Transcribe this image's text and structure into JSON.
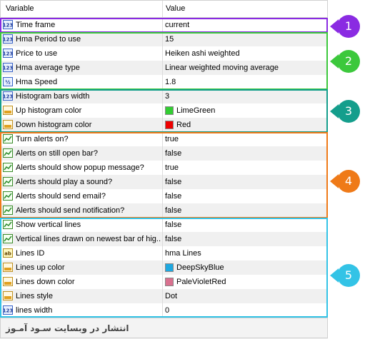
{
  "header": {
    "variable": "Variable",
    "value": "Value"
  },
  "rows": [
    {
      "name": "Time frame",
      "value": "current",
      "icon": "123"
    },
    {
      "name": "Hma Period to use",
      "value": "15",
      "icon": "123"
    },
    {
      "name": "Price to use",
      "value": "Heiken ashi weighted",
      "icon": "123"
    },
    {
      "name": "Hma average type",
      "value": "Linear weighted moving average",
      "icon": "123"
    },
    {
      "name": "Hma Speed",
      "value": "1.8",
      "icon": "half"
    },
    {
      "name": "Histogram bars width",
      "value": "3",
      "icon": "123"
    },
    {
      "name": "Up histogram color",
      "value": "LimeGreen",
      "icon": "color",
      "swatch": "#32cd32"
    },
    {
      "name": "Down histogram color",
      "value": "Red",
      "icon": "color",
      "swatch": "#ee0000"
    },
    {
      "name": "Turn alerts on?",
      "value": "true",
      "icon": "bool"
    },
    {
      "name": "Alerts on still open bar?",
      "value": "false",
      "icon": "bool"
    },
    {
      "name": "Alerts should show popup message?",
      "value": "true",
      "icon": "bool"
    },
    {
      "name": "Alerts should play a sound?",
      "value": "false",
      "icon": "bool"
    },
    {
      "name": "Alerts should send email?",
      "value": "false",
      "icon": "bool"
    },
    {
      "name": "Alerts should send notification?",
      "value": "false",
      "icon": "bool"
    },
    {
      "name": "Show vertical lines",
      "value": "false",
      "icon": "bool"
    },
    {
      "name": "Vertical lines drawn on newest bar of hig...",
      "value": "false",
      "icon": "bool"
    },
    {
      "name": "Lines ID",
      "value": "hma Lines",
      "icon": "ab"
    },
    {
      "name": "Lines up color",
      "value": "DeepSkyBlue",
      "icon": "color",
      "swatch": "#1ea8e0"
    },
    {
      "name": "Lines down color",
      "value": "PaleVioletRed",
      "icon": "color",
      "swatch": "#d9718f"
    },
    {
      "name": "Lines style",
      "value": "Dot",
      "icon": "color"
    },
    {
      "name": "lines width",
      "value": "0",
      "icon": "123"
    }
  ],
  "groups": [
    {
      "label": "1",
      "color": "#8a2be2"
    },
    {
      "label": "2",
      "color": "#3cc83c"
    },
    {
      "label": "3",
      "color": "#149e8c"
    },
    {
      "label": "4",
      "color": "#ef7a18"
    },
    {
      "label": "5",
      "color": "#33c3e6"
    }
  ],
  "footer": {
    "text": "انتشار در وبسایت سـود آمـوز"
  }
}
